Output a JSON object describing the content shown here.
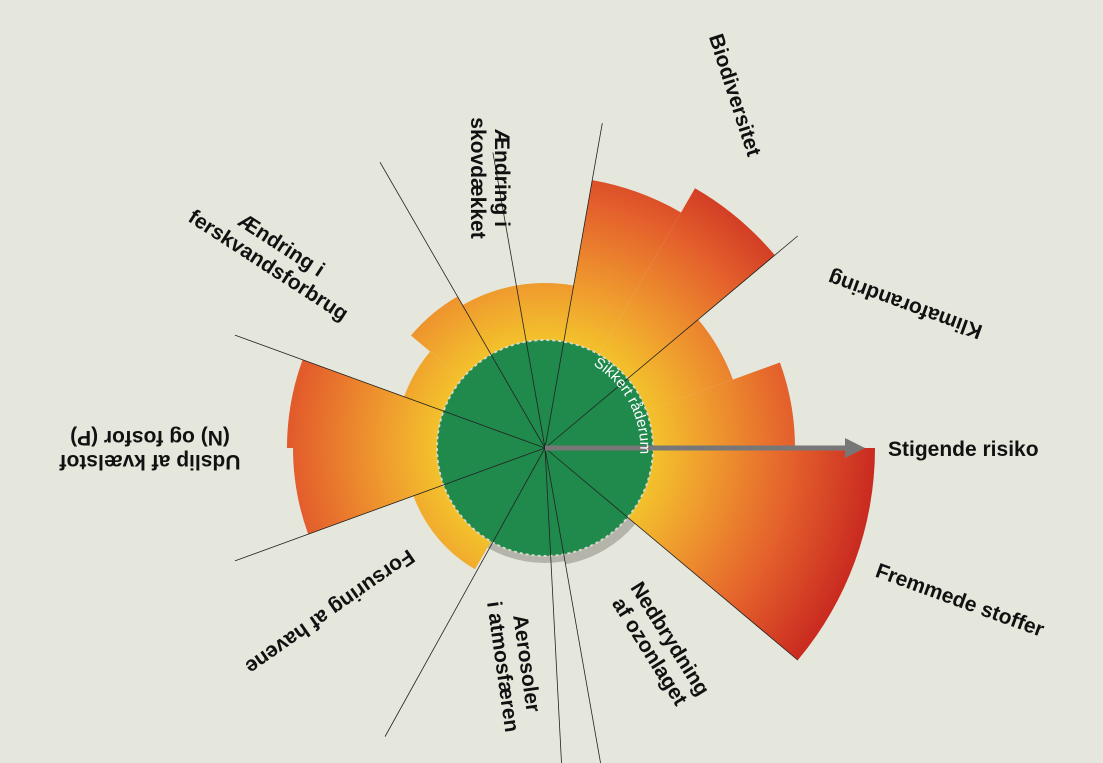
{
  "center_label": "Sikkert råderum",
  "arrow_label": "Stigende risiko",
  "boundaries": [
    {
      "label_lines": [
        "Biodiversitet"
      ]
    },
    {
      "label_lines": [
        "Klimaforandring"
      ]
    },
    {
      "label_lines": [
        "Fremmede stoffer"
      ]
    },
    {
      "label_lines": [
        "Nedbrydning",
        "af ozonlaget"
      ]
    },
    {
      "label_lines": [
        "Aerosoler",
        "i atmosfæren"
      ]
    },
    {
      "label_lines": [
        "Forsuring af havene"
      ]
    },
    {
      "label_lines": [
        "Udslip af kvælstof",
        "(N) og fosfor (P)"
      ]
    },
    {
      "label_lines": [
        "Ændring i",
        "ferskvandsforbrug"
      ]
    },
    {
      "label_lines": [
        "Ændring i",
        "skovdækket"
      ]
    }
  ]
}
